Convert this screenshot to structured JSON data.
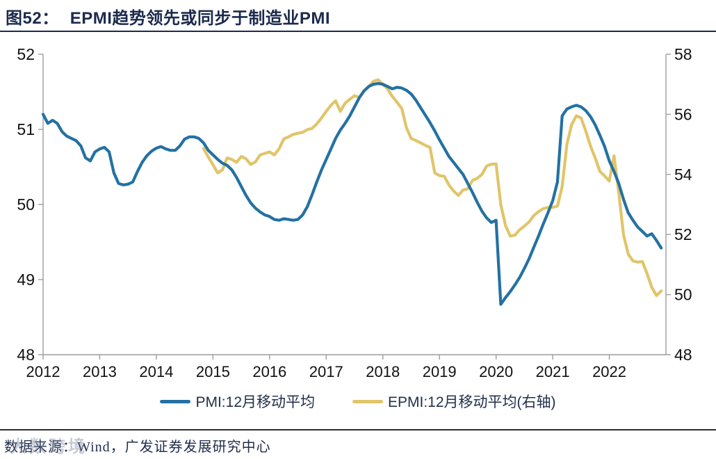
{
  "figure": {
    "caption_label": "图52：",
    "caption_text": "EPMI趋势领先或同步于制造业PMI",
    "source": "数据来源：Wind，广发证券发展研究中心",
    "watermark": "大数跨境"
  },
  "legend": [
    {
      "label": "PMI:12月移动平均",
      "color": "#2471a3"
    },
    {
      "label": "EPMI:12月移动平均(右轴)",
      "color": "#e0c569"
    }
  ],
  "colors": {
    "pmi_line": "#2471a3",
    "epmi_line": "#e0c569",
    "axis": "#9c9c9c",
    "tick_label": "#111111",
    "title_navy": "#1b2a4c"
  },
  "chart_data": {
    "type": "line",
    "title": "EPMI趋势领先或同步于制造业PMI",
    "grid": false,
    "legend_position": "bottom",
    "x_axis": {
      "ticks": [
        2012,
        2013,
        2014,
        2015,
        2016,
        2017,
        2018,
        2019,
        2020,
        2021,
        2022
      ],
      "range": [
        2012,
        2023
      ]
    },
    "y_left": {
      "ticks": [
        52,
        51,
        50,
        49,
        48
      ],
      "range": [
        48,
        52
      ]
    },
    "y_right": {
      "ticks": [
        58,
        56,
        54,
        52,
        50,
        48
      ],
      "range": [
        48,
        58
      ]
    },
    "series": [
      {
        "name": "PMI:12月移动平均",
        "axis": "left",
        "color": "#2471a3",
        "start": 2012.0,
        "step_months": 1,
        "values": [
          51.2,
          51.08,
          51.12,
          51.08,
          50.97,
          50.91,
          50.88,
          50.85,
          50.78,
          50.62,
          50.58,
          50.7,
          50.74,
          50.76,
          50.7,
          50.42,
          50.28,
          50.26,
          50.27,
          50.3,
          50.44,
          50.56,
          50.65,
          50.71,
          50.75,
          50.77,
          50.74,
          50.72,
          50.72,
          50.78,
          50.87,
          50.9,
          50.9,
          50.88,
          50.82,
          50.72,
          50.66,
          50.6,
          50.55,
          50.52,
          50.46,
          50.36,
          50.24,
          50.12,
          50.02,
          49.95,
          49.9,
          49.86,
          49.84,
          49.8,
          49.79,
          49.81,
          49.8,
          49.79,
          49.8,
          49.86,
          49.97,
          50.13,
          50.3,
          50.46,
          50.6,
          50.74,
          50.88,
          50.99,
          51.08,
          51.18,
          51.3,
          51.42,
          51.51,
          51.57,
          51.6,
          51.61,
          51.6,
          51.57,
          51.54,
          51.56,
          51.55,
          51.52,
          51.47,
          51.39,
          51.29,
          51.19,
          51.09,
          50.98,
          50.86,
          50.75,
          50.64,
          50.56,
          50.48,
          50.4,
          50.28,
          50.16,
          50.03,
          49.91,
          49.82,
          49.76,
          49.79,
          48.67,
          48.76,
          48.84,
          48.93,
          49.03,
          49.15,
          49.28,
          49.43,
          49.58,
          49.74,
          49.89,
          50.05,
          50.3,
          51.18,
          51.27,
          51.3,
          51.32,
          51.3,
          51.25,
          51.17,
          51.06,
          50.92,
          50.77,
          50.58,
          50.44,
          50.28,
          50.07,
          49.89,
          49.79,
          49.7,
          49.64,
          49.58,
          49.61,
          49.52,
          49.42
        ]
      },
      {
        "name": "EPMI:12月移动平均(右轴)",
        "axis": "right",
        "color": "#e0c569",
        "start": 2014.8333,
        "step_months": 1,
        "values": [
          54.86,
          54.58,
          54.32,
          54.05,
          54.15,
          54.55,
          54.5,
          54.4,
          54.6,
          54.52,
          54.33,
          54.42,
          54.65,
          54.7,
          54.75,
          54.65,
          54.85,
          55.18,
          55.25,
          55.33,
          55.37,
          55.4,
          55.49,
          55.53,
          55.68,
          55.88,
          56.1,
          56.3,
          56.45,
          56.1,
          56.37,
          56.5,
          56.62,
          56.56,
          56.79,
          56.92,
          57.1,
          57.15,
          57.0,
          56.85,
          56.6,
          56.4,
          56.2,
          55.55,
          55.2,
          55.13,
          55.05,
          54.97,
          54.9,
          54.05,
          53.96,
          53.94,
          53.65,
          53.45,
          53.3,
          53.48,
          53.52,
          53.8,
          53.87,
          54.0,
          54.28,
          54.34,
          54.35,
          53.0,
          52.3,
          51.95,
          51.98,
          52.16,
          52.28,
          52.42,
          52.63,
          52.76,
          52.86,
          52.9,
          52.9,
          52.95,
          53.6,
          55.0,
          55.65,
          55.95,
          55.88,
          55.45,
          54.95,
          54.55,
          54.1,
          53.95,
          53.78,
          54.62,
          53.4,
          52.0,
          51.35,
          51.12,
          51.08,
          51.1,
          50.7,
          50.24,
          49.97,
          50.12
        ]
      }
    ]
  }
}
